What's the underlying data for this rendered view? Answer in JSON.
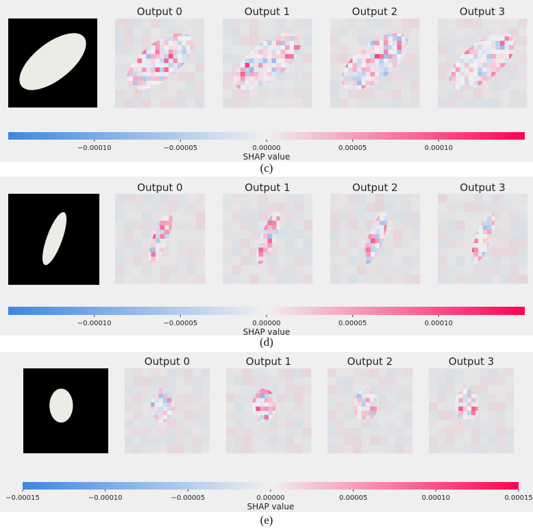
{
  "panels": [
    {
      "id": "c",
      "caption": "(c)",
      "outputs": [
        "Output 0",
        "Output 1",
        "Output 2",
        "Output 3"
      ],
      "colorbar": {
        "label": "SHAP value",
        "range": [
          -0.00015,
          0.00015
        ],
        "ticks": [
          "−0.00010",
          "−0.00005",
          "0.00000",
          "0.00005",
          "0.00010"
        ],
        "tick_values": [
          -0.0001,
          -5e-05,
          0,
          5e-05,
          0.0001
        ]
      },
      "grain_shape": "elongated-tilted"
    },
    {
      "id": "d",
      "caption": "(d)",
      "outputs": [
        "Output 0",
        "Output 1",
        "Output 2",
        "Output 3"
      ],
      "colorbar": {
        "label": "SHAP value",
        "range": [
          -0.00015,
          0.00015
        ],
        "ticks": [
          "−0.00010",
          "−0.00005",
          "0.00000",
          "0.00005",
          "0.00010"
        ],
        "tick_values": [
          -0.0001,
          -5e-05,
          0,
          5e-05,
          0.0001
        ]
      },
      "grain_shape": "slender-tilted"
    },
    {
      "id": "e",
      "caption": "(e)",
      "outputs": [
        "Output 0",
        "Output 1",
        "Output 2",
        "Output 3"
      ],
      "colorbar": {
        "label": "SHAP value",
        "range": [
          -0.00015,
          0.00015
        ],
        "ticks": [
          "−0.00015",
          "−0.00010",
          "−0.00005",
          "0.00000",
          "0.00005",
          "0.00010",
          "0.00015"
        ],
        "tick_values": [
          -0.00015,
          -0.0001,
          -5e-05,
          0,
          5e-05,
          0.0001,
          0.00015
        ]
      },
      "grain_shape": "oval"
    }
  ],
  "colors": {
    "negative": "#3d86e0",
    "neutral": "#f0f0f0",
    "positive": "#ff0051",
    "panel_bg": "#efefef",
    "input_bg": "#000000"
  }
}
